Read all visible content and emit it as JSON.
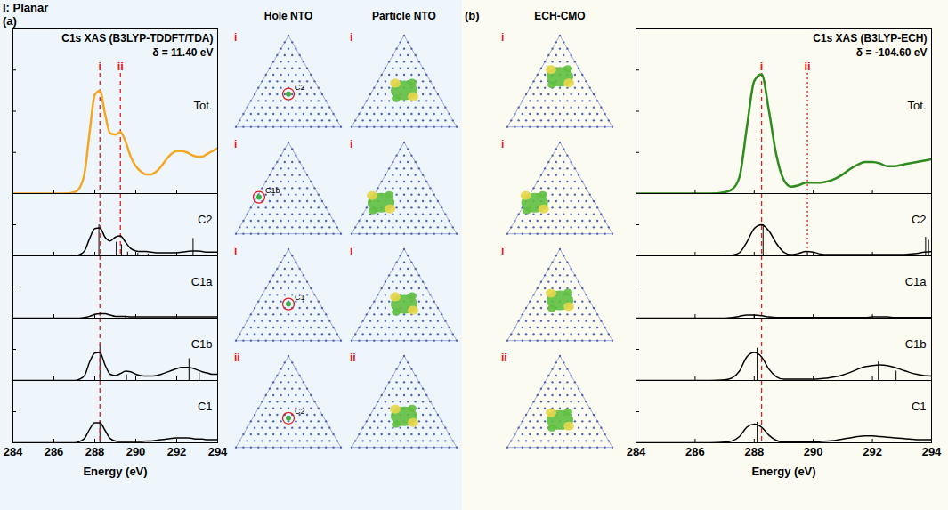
{
  "header": {
    "figure_label": "I: Planar"
  },
  "chart_data": [
    {
      "type": "line",
      "panel": "(a)",
      "title": "C1s XAS (B3LYP-TDDFT/TDA)",
      "annotation": "δ = 11.40 eV",
      "x_label": "Energy (eV)",
      "xlim": [
        284,
        294
      ],
      "xticks": [
        284,
        286,
        288,
        290,
        292,
        294
      ],
      "tick_labels": "x",
      "x": [
        284,
        285,
        286,
        286.5,
        287,
        287.25,
        287.5,
        287.75,
        288,
        288.25,
        288.5,
        288.75,
        289,
        289.25,
        289.5,
        289.75,
        290,
        290.25,
        290.5,
        290.75,
        291,
        291.25,
        291.5,
        291.75,
        292,
        292.25,
        292.5,
        292.75,
        293,
        293.25,
        293.5,
        293.75,
        294
      ],
      "series": [
        {
          "name": "Tot.",
          "color": "#f5a623",
          "ylim": [
            0,
            1.2
          ],
          "yticks": [
            0,
            0.3,
            0.6,
            0.9,
            1.2
          ],
          "values": [
            0,
            0,
            0,
            0,
            0.01,
            0.04,
            0.15,
            0.45,
            0.72,
            0.75,
            0.58,
            0.44,
            0.43,
            0.45,
            0.38,
            0.27,
            0.2,
            0.16,
            0.14,
            0.14,
            0.16,
            0.2,
            0.25,
            0.29,
            0.31,
            0.31,
            0.3,
            0.28,
            0.27,
            0.27,
            0.29,
            0.31,
            0.33
          ]
        },
        {
          "name": "C2",
          "color": "#000000",
          "ylim": [
            0,
            1
          ],
          "yticks": [
            0,
            0.5,
            1
          ],
          "values": [
            0,
            0,
            0,
            0,
            0,
            0.02,
            0.08,
            0.28,
            0.44,
            0.45,
            0.3,
            0.24,
            0.3,
            0.32,
            0.22,
            0.12,
            0.08,
            0.07,
            0.07,
            0.06,
            0.05,
            0.05,
            0.05,
            0.05,
            0.05,
            0.06,
            0.07,
            0.08,
            0.08,
            0.07,
            0.06,
            0.06,
            0.06
          ],
          "sticks": {
            "x": [
              288.2,
              289.05,
              289.3,
              289.6,
              290.1,
              290.6,
              292.8
            ],
            "values": [
              0.5,
              0.22,
              0.18,
              0.06,
              0.04,
              0.03,
              0.28
            ]
          }
        },
        {
          "name": "C1a",
          "color": "#000000",
          "ylim": [
            0,
            1
          ],
          "yticks": [
            0,
            0.5,
            1
          ],
          "values": [
            0,
            0,
            0,
            0,
            0,
            0,
            0.01,
            0.03,
            0.06,
            0.07,
            0.07,
            0.05,
            0.03,
            0.03,
            0.03,
            0.02,
            0.02,
            0.02,
            0.02,
            0.02,
            0.02,
            0.02,
            0.02,
            0.02,
            0.02,
            0.02,
            0.02,
            0.02,
            0.02,
            0.02,
            0.02,
            0.02,
            0.02
          ],
          "sticks": {
            "x": [
              288.3,
              289.5
            ],
            "values": [
              0.06,
              0.02
            ]
          }
        },
        {
          "name": "C1b",
          "color": "#000000",
          "ylim": [
            0,
            1
          ],
          "yticks": [
            0,
            0.5,
            1
          ],
          "values": [
            0,
            0,
            0,
            0,
            0,
            0.02,
            0.08,
            0.3,
            0.44,
            0.45,
            0.25,
            0.1,
            0.08,
            0.11,
            0.15,
            0.14,
            0.1,
            0.08,
            0.07,
            0.07,
            0.08,
            0.1,
            0.13,
            0.16,
            0.19,
            0.21,
            0.21,
            0.2,
            0.17,
            0.14,
            0.12,
            0.1,
            0.1
          ],
          "sticks": {
            "x": [
              288.25,
              289.55,
              292.6,
              293.1
            ],
            "values": [
              0.58,
              0.09,
              0.35,
              0.12
            ]
          }
        },
        {
          "name": "C1",
          "color": "#000000",
          "ylim": [
            0,
            1
          ],
          "yticks": [
            0,
            0.5,
            1
          ],
          "values": [
            0,
            0,
            0,
            0,
            0,
            0.02,
            0.07,
            0.22,
            0.32,
            0.32,
            0.2,
            0.07,
            0.03,
            0.02,
            0.02,
            0.02,
            0.02,
            0.02,
            0.03,
            0.03,
            0.04,
            0.05,
            0.06,
            0.07,
            0.08,
            0.08,
            0.08,
            0.07,
            0.06,
            0.06,
            0.05,
            0.05,
            0.05
          ],
          "sticks": {
            "x": [
              288.25
            ],
            "values": [
              0.35
            ]
          }
        }
      ],
      "markers": [
        {
          "label": "i",
          "x": 288.25,
          "color": "#e02020",
          "line_style": "dashed",
          "series": [
            "Tot.",
            "C2",
            "C1a",
            "C1b",
            "C1"
          ]
        },
        {
          "label": "ii",
          "x": 289.25,
          "color": "#e02020",
          "line_style": "dashed",
          "series": [
            "Tot.",
            "C2"
          ]
        }
      ]
    },
    {
      "type": "line",
      "panel": "(b)",
      "title": "C1s XAS (B3LYP-ECH)",
      "annotation": "δ = -104.60 eV",
      "x_label": "Energy (eV)",
      "xlim": [
        284,
        294
      ],
      "xticks": [
        284,
        286,
        288,
        290,
        292,
        294
      ],
      "tick_labels": "x",
      "x": [
        284,
        285,
        286,
        286.5,
        287,
        287.25,
        287.5,
        287.75,
        288,
        288.25,
        288.5,
        288.75,
        289,
        289.25,
        289.5,
        289.75,
        290,
        290.25,
        290.5,
        290.75,
        291,
        291.25,
        291.5,
        291.75,
        292,
        292.25,
        292.5,
        292.75,
        293,
        293.25,
        293.5,
        293.75,
        294
      ],
      "series": [
        {
          "name": "Tot.",
          "color": "#2e8b1e",
          "ylim": [
            0,
            1.2
          ],
          "yticks": [
            0,
            0.3,
            0.6,
            0.9,
            1.2
          ],
          "values": [
            0,
            0,
            0,
            0,
            0.01,
            0.03,
            0.12,
            0.48,
            0.82,
            0.87,
            0.6,
            0.28,
            0.1,
            0.05,
            0.06,
            0.08,
            0.08,
            0.08,
            0.09,
            0.11,
            0.14,
            0.18,
            0.21,
            0.23,
            0.23,
            0.22,
            0.2,
            0.2,
            0.21,
            0.22,
            0.23,
            0.24,
            0.25
          ]
        },
        {
          "name": "C2",
          "color": "#000000",
          "ylim": [
            0,
            1
          ],
          "yticks": [
            0,
            0.5,
            1
          ],
          "values": [
            0,
            0,
            0,
            0,
            0,
            0.01,
            0.05,
            0.22,
            0.44,
            0.5,
            0.4,
            0.2,
            0.06,
            0.02,
            0.04,
            0.07,
            0.06,
            0.03,
            0.02,
            0.02,
            0.02,
            0.02,
            0.02,
            0.02,
            0.02,
            0.02,
            0.02,
            0.02,
            0.02,
            0.03,
            0.04,
            0.06,
            0.07
          ],
          "sticks": {
            "x": [
              288.3,
              289.8,
              293.8,
              293.9
            ],
            "values": [
              0.5,
              0.07,
              0.3,
              0.25
            ]
          }
        },
        {
          "name": "C1a",
          "color": "#000000",
          "ylim": [
            0,
            1
          ],
          "yticks": [
            0,
            0.5,
            1
          ],
          "values": [
            0,
            0,
            0,
            0,
            0,
            0.01,
            0.03,
            0.05,
            0.05,
            0.04,
            0.02,
            0.01,
            0.01,
            0.01,
            0.01,
            0.01,
            0.01,
            0.01,
            0.01,
            0.01,
            0.01,
            0.01,
            0.01,
            0.01,
            0.02,
            0.02,
            0.02,
            0.01,
            0.01,
            0.01,
            0.01,
            0.01,
            0.01
          ],
          "sticks": {
            "x": [
              288.0
            ],
            "values": [
              0.05
            ]
          }
        },
        {
          "name": "C1b",
          "color": "#000000",
          "ylim": [
            0,
            1
          ],
          "yticks": [
            0,
            0.5,
            1
          ],
          "values": [
            0,
            0,
            0,
            0,
            0.01,
            0.04,
            0.15,
            0.38,
            0.45,
            0.38,
            0.18,
            0.06,
            0.02,
            0.02,
            0.02,
            0.02,
            0.02,
            0.03,
            0.04,
            0.06,
            0.09,
            0.13,
            0.18,
            0.22,
            0.24,
            0.25,
            0.24,
            0.21,
            0.17,
            0.13,
            0.1,
            0.08,
            0.07
          ],
          "sticks": {
            "x": [
              288.1,
              292.2,
              292.8
            ],
            "values": [
              0.52,
              0.3,
              0.15
            ]
          }
        },
        {
          "name": "C1",
          "color": "#000000",
          "ylim": [
            0,
            1
          ],
          "yticks": [
            0,
            0.5,
            1
          ],
          "values": [
            0,
            0,
            0,
            0,
            0.01,
            0.03,
            0.1,
            0.25,
            0.3,
            0.25,
            0.12,
            0.04,
            0.01,
            0.01,
            0.01,
            0.01,
            0.01,
            0.02,
            0.03,
            0.04,
            0.06,
            0.08,
            0.1,
            0.11,
            0.11,
            0.1,
            0.09,
            0.08,
            0.07,
            0.06,
            0.05,
            0.05,
            0.05
          ],
          "sticks": {
            "x": [
              288.1
            ],
            "values": [
              0.33
            ]
          }
        }
      ],
      "markers": [
        {
          "label": "i",
          "x": 288.25,
          "color": "#e02020",
          "line_style": "dashed",
          "series": [
            "Tot.",
            "C2",
            "C1a",
            "C1b",
            "C1"
          ]
        },
        {
          "label": "ii",
          "x": 289.8,
          "color": "#e02020",
          "line_style": "dotted",
          "series": [
            "Tot.",
            "C2"
          ]
        }
      ]
    }
  ],
  "orbitals": {
    "columns": [
      "Hole NTO",
      "Particle NTO",
      "ECH-CMO"
    ],
    "rows": [
      {
        "label": "i",
        "atom": "C2"
      },
      {
        "label": "i",
        "atom": "C1b"
      },
      {
        "label": "i",
        "atom": "C1"
      },
      {
        "label": "ii",
        "atom": "C2"
      }
    ]
  }
}
